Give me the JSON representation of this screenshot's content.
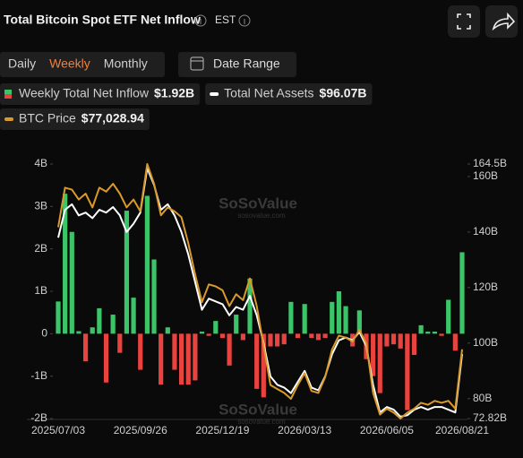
{
  "header": {
    "title": "Total Bitcoin Spot ETF Net Inflow",
    "timezone": "EST"
  },
  "controls": {
    "periods": [
      "Daily",
      "Weekly",
      "Monthly"
    ],
    "active": 1,
    "date_range": "Date Range"
  },
  "watermark": {
    "brand": "SoSoValue",
    "site": "sosovalue.com"
  },
  "chart_data": {
    "type": "bar",
    "categories": [
      "2025/07/03",
      null,
      null,
      null,
      null,
      null,
      null,
      null,
      null,
      null,
      null,
      null,
      "2025/09/26",
      null,
      null,
      null,
      null,
      null,
      null,
      null,
      null,
      null,
      null,
      null,
      "2025/12/19",
      null,
      null,
      null,
      null,
      null,
      null,
      null,
      null,
      null,
      null,
      null,
      "2026/03/13",
      null,
      null,
      null,
      null,
      null,
      null,
      null,
      null,
      null,
      null,
      null,
      "2026/06/05",
      null,
      null,
      null,
      null,
      null,
      null,
      null,
      null,
      null,
      null,
      "2026/08/21"
    ],
    "ylim": [
      -2,
      4
    ],
    "yticks": [
      {
        "value": 4,
        "label": "4B"
      },
      {
        "value": 3,
        "label": "3B"
      },
      {
        "value": 2,
        "label": "2B"
      },
      {
        "value": 1,
        "label": "1B"
      },
      0,
      {
        "value": -1,
        "label": "-1B"
      },
      {
        "value": -2,
        "label": "-2B"
      }
    ],
    "y2lim": [
      72.82,
      164.5
    ],
    "y2ticks": [
      {
        "value": 164.5,
        "label": "164.5B"
      },
      {
        "value": 160,
        "label": "160B"
      },
      {
        "value": 140,
        "label": "140B"
      },
      {
        "value": 120,
        "label": "120B"
      },
      {
        "value": 100,
        "label": "100B"
      },
      {
        "value": 80,
        "label": "80B"
      },
      {
        "value": 72.82,
        "label": "72.82B"
      }
    ],
    "series": [
      {
        "name": "Weekly Total Net Inflow",
        "type": "bar",
        "latest_label": "$1.92B",
        "color": "#3cc468",
        "negative_color": "#e8433e",
        "values": [
          0.76,
          3.3,
          2.4,
          0.06,
          -0.65,
          0.15,
          0.6,
          -1.15,
          0.45,
          -0.45,
          2.9,
          0.85,
          -0.85,
          3.25,
          1.75,
          -1.2,
          0.15,
          -0.85,
          -1.2,
          -1.2,
          -1.1,
          0.05,
          -0.05,
          0.3,
          -0.1,
          -0.75,
          0.45,
          -0.15,
          1.3,
          -1.3,
          -1.5,
          -0.3,
          -0.3,
          -0.25,
          0.75,
          -0.1,
          0.7,
          -0.1,
          -0.15,
          -0.1,
          0.75,
          1.0,
          0.65,
          -0.3,
          0.55,
          -0.6,
          -1.0,
          -1.4,
          -0.3,
          -0.25,
          -0.35,
          -1.8,
          -0.5,
          0.2,
          0.05,
          0.05,
          -0.05,
          0.8,
          -0.4,
          1.92
        ]
      },
      {
        "name": "Total Net Assets",
        "type": "line",
        "axis": "y2",
        "latest_label": "$96.07B",
        "color": "#ffffff",
        "values": [
          138,
          148,
          150,
          146,
          147,
          145,
          148,
          147,
          149,
          146,
          140,
          143,
          147,
          163,
          157,
          148,
          150,
          146,
          140,
          132,
          122,
          112,
          116,
          115,
          114,
          110,
          113,
          112,
          117,
          110,
          100,
          88,
          85,
          84,
          82,
          86,
          90,
          84,
          83,
          88,
          96,
          101,
          102,
          101,
          104,
          99,
          85,
          75,
          77,
          76,
          73.5,
          74,
          76,
          77,
          76,
          77,
          77,
          76,
          75,
          96.07
        ]
      },
      {
        "name": "BTC Price",
        "type": "line",
        "latest_label": "$77,028.94",
        "color": "#d99a2b",
        "values": [
          108000,
          118000,
          117500,
          115000,
          116500,
          113000,
          118000,
          117000,
          119000,
          116500,
          113000,
          115000,
          112000,
          124000,
          119000,
          111000,
          113000,
          112000,
          110500,
          104000,
          96000,
          89000,
          93500,
          93000,
          92000,
          88000,
          91000,
          89500,
          95000,
          88000,
          78000,
          68000,
          67000,
          66000,
          64500,
          68000,
          71000,
          66500,
          66000,
          70000,
          77000,
          80500,
          80000,
          79000,
          82000,
          78500,
          66000,
          60500,
          62000,
          61000,
          59500,
          61000,
          62000,
          63500,
          63000,
          64000,
          63500,
          64000,
          62000,
          77028.94
        ]
      }
    ]
  }
}
